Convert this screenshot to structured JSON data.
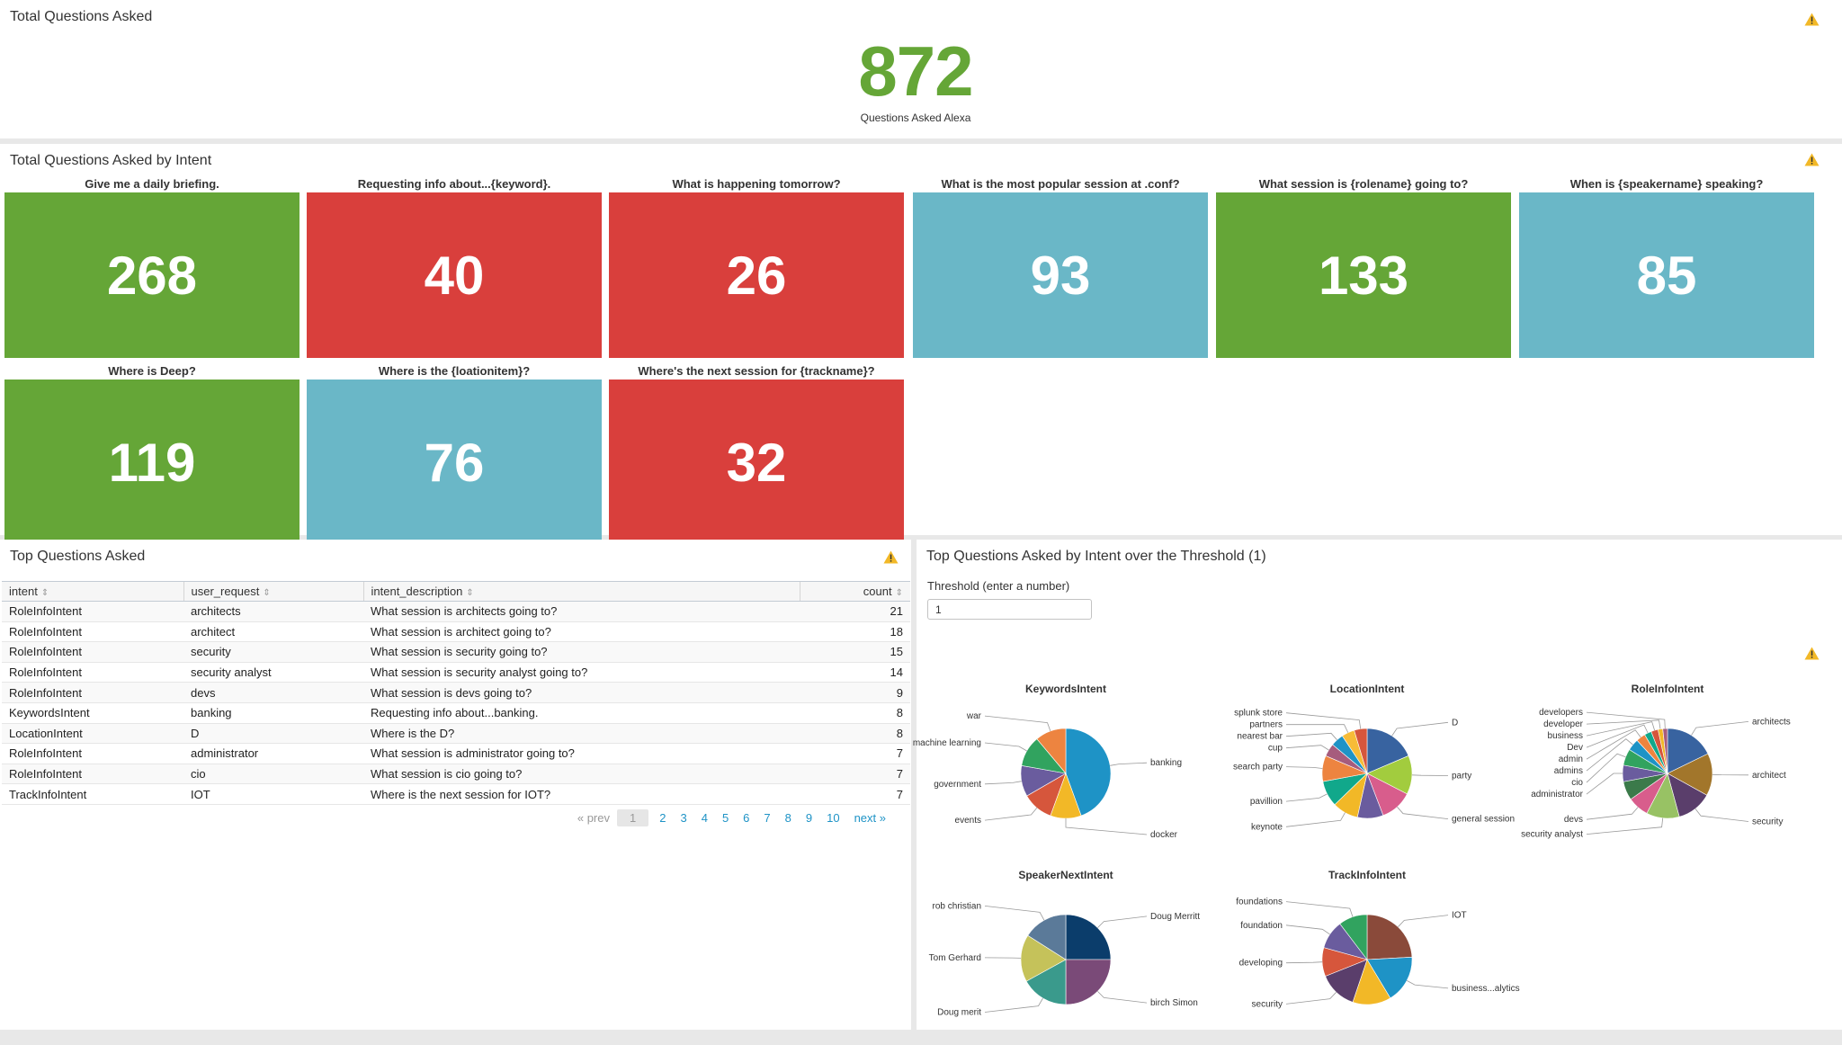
{
  "total": {
    "title": "Total Questions Asked",
    "value": "872",
    "caption": "Questions Asked Alexa"
  },
  "intents": {
    "title": "Total Questions Asked by Intent",
    "tiles": [
      {
        "label": "Give me a daily briefing.",
        "value": "268",
        "color": "#65a637"
      },
      {
        "label": "Requesting info about...{keyword}.",
        "value": "40",
        "color": "#d93f3c"
      },
      {
        "label": "What is happening tomorrow?",
        "value": "26",
        "color": "#d93f3c"
      },
      {
        "label": "What is the most popular session at .conf?",
        "value": "93",
        "color": "#6ab7c7"
      },
      {
        "label": "What session is {rolename} going to?",
        "value": "133",
        "color": "#65a637"
      },
      {
        "label": "When is {speakername} speaking?",
        "value": "85",
        "color": "#6ab7c7"
      },
      {
        "label": "Where is Deep?",
        "value": "119",
        "color": "#65a637"
      },
      {
        "label": "Where is the {loationitem}?",
        "value": "76",
        "color": "#6ab7c7"
      },
      {
        "label": "Where's the next session for {trackname}?",
        "value": "32",
        "color": "#d93f3c"
      }
    ]
  },
  "top_questions": {
    "title": "Top Questions Asked",
    "columns": [
      "intent",
      "user_request",
      "intent_description",
      "count"
    ],
    "rows": [
      [
        "RoleInfoIntent",
        "architects",
        "What session is architects going to?",
        "21"
      ],
      [
        "RoleInfoIntent",
        "architect",
        "What session is architect going to?",
        "18"
      ],
      [
        "RoleInfoIntent",
        "security",
        "What session is security going to?",
        "15"
      ],
      [
        "RoleInfoIntent",
        "security analyst",
        "What session is security analyst going to?",
        "14"
      ],
      [
        "RoleInfoIntent",
        "devs",
        "What session is devs going to?",
        "9"
      ],
      [
        "KeywordsIntent",
        "banking",
        "Requesting info about...banking.",
        "8"
      ],
      [
        "LocationIntent",
        "D",
        "Where is the D?",
        "8"
      ],
      [
        "RoleInfoIntent",
        "administrator",
        "What session is administrator going to?",
        "7"
      ],
      [
        "RoleInfoIntent",
        "cio",
        "What session is cio going to?",
        "7"
      ],
      [
        "TrackInfoIntent",
        "IOT",
        "Where is the next session for IOT?",
        "7"
      ]
    ],
    "pager": {
      "prev": "« prev",
      "pages": [
        "1",
        "2",
        "3",
        "4",
        "5",
        "6",
        "7",
        "8",
        "9",
        "10"
      ],
      "current": "1",
      "next": "next »"
    }
  },
  "threshold": {
    "title": "Top Questions Asked by Intent over the Threshold (1)",
    "label": "Threshold (enter a number)",
    "value": "1"
  },
  "chart_data": [
    {
      "type": "pie",
      "title": "KeywordsIntent",
      "slices": [
        {
          "label": "banking",
          "value": 8,
          "color": "#1e93c6"
        },
        {
          "label": "docker",
          "value": 2,
          "color": "#f2b827"
        },
        {
          "label": "events",
          "value": 2,
          "color": "#d6563c"
        },
        {
          "label": "government",
          "value": 2,
          "color": "#6a5c9e"
        },
        {
          "label": "machine learning",
          "value": 2,
          "color": "#31a35f"
        },
        {
          "label": "war",
          "value": 2,
          "color": "#ed8440"
        }
      ]
    },
    {
      "type": "pie",
      "title": "LocationIntent",
      "slices": [
        {
          "label": "D",
          "value": 8,
          "color": "#3863a0"
        },
        {
          "label": "party",
          "value": 6,
          "color": "#a2cc3e"
        },
        {
          "label": "general session",
          "value": 5,
          "color": "#d85d8c"
        },
        {
          "label": "",
          "value": 4,
          "color": "#6a5c9e"
        },
        {
          "label": "keynote",
          "value": 4,
          "color": "#f2b827"
        },
        {
          "label": "pavillion",
          "value": 4,
          "color": "#11a88b"
        },
        {
          "label": "search party",
          "value": 4,
          "color": "#ed8440"
        },
        {
          "label": "cup",
          "value": 2,
          "color": "#a65c7d"
        },
        {
          "label": "nearest bar",
          "value": 2,
          "color": "#1e93c6"
        },
        {
          "label": "partners",
          "value": 2,
          "color": "#f7bc38"
        },
        {
          "label": "splunk store",
          "value": 2,
          "color": "#d6563c"
        }
      ]
    },
    {
      "type": "pie",
      "title": "RoleInfoIntent",
      "slices": [
        {
          "label": "architects",
          "value": 21,
          "color": "#3863a0"
        },
        {
          "label": "architect",
          "value": 18,
          "color": "#a2762b"
        },
        {
          "label": "security",
          "value": 15,
          "color": "#5a3e6b"
        },
        {
          "label": "security analyst",
          "value": 14,
          "color": "#98c264"
        },
        {
          "label": "devs",
          "value": 9,
          "color": "#d85d8c"
        },
        {
          "label": "",
          "value": 8,
          "color": "#3b7a4a"
        },
        {
          "label": "administrator",
          "value": 7,
          "color": "#6a5c9e"
        },
        {
          "label": "cio",
          "value": 7,
          "color": "#31a35f"
        },
        {
          "label": "admins",
          "value": 5,
          "color": "#1e93c6"
        },
        {
          "label": "admin",
          "value": 4,
          "color": "#ed8440"
        },
        {
          "label": "Dev",
          "value": 3,
          "color": "#11a88b"
        },
        {
          "label": "business",
          "value": 3,
          "color": "#d6563c"
        },
        {
          "label": "developer",
          "value": 2,
          "color": "#f2b827"
        },
        {
          "label": "developers",
          "value": 2,
          "color": "#a65c7d"
        }
      ]
    },
    {
      "type": "pie",
      "title": "SpeakerNextIntent",
      "slices": [
        {
          "label": "Doug Merritt",
          "value": 25,
          "color": "#0b3d6b"
        },
        {
          "label": "birch Simon",
          "value": 25,
          "color": "#7a4a78"
        },
        {
          "label": "Doug merit",
          "value": 17,
          "color": "#3a9a8c"
        },
        {
          "label": "Tom Gerhard",
          "value": 17,
          "color": "#c5c25a"
        },
        {
          "label": "rob christian",
          "value": 16,
          "color": "#5b7a99"
        }
      ]
    },
    {
      "type": "pie",
      "title": "TrackInfoIntent",
      "slices": [
        {
          "label": "IOT",
          "value": 7,
          "color": "#8a4a3a"
        },
        {
          "label": "business...alytics",
          "value": 5,
          "color": "#1e93c6"
        },
        {
          "label": "",
          "value": 4,
          "color": "#f2b827"
        },
        {
          "label": "security",
          "value": 4,
          "color": "#5a3e6b"
        },
        {
          "label": "developing",
          "value": 3,
          "color": "#d6563c"
        },
        {
          "label": "foundation",
          "value": 3,
          "color": "#6a5c9e"
        },
        {
          "label": "foundations",
          "value": 3,
          "color": "#31a35f"
        }
      ]
    }
  ]
}
